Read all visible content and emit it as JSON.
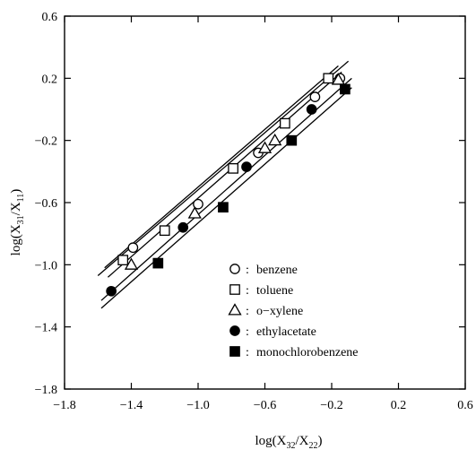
{
  "chart_data": {
    "type": "scatter",
    "x_axis": {
      "label_main": "log(X",
      "label_sub1": "32",
      "label_mid": "/X",
      "label_sub2": "22",
      "label_end": ")",
      "range": [
        -1.8,
        0.6
      ],
      "ticks": [
        -1.8,
        -1.4,
        -1.0,
        -0.6,
        -0.2,
        0.2,
        0.6
      ],
      "tick_labels": [
        "−1.8",
        "−1.4",
        "−1.0",
        "−0.6",
        "−0.2",
        "0.2",
        "0.6"
      ]
    },
    "y_axis": {
      "label_main": "log(X",
      "label_sub1": "31",
      "label_mid": "/X",
      "label_sub2": "11",
      "label_end": ")",
      "range": [
        -1.8,
        0.6
      ],
      "ticks": [
        -1.8,
        -1.4,
        -1.0,
        -0.6,
        -0.2,
        0.2,
        0.6
      ],
      "tick_labels": [
        "−1.8",
        "−1.4",
        "−1.0",
        "−0.6",
        "−0.2",
        "0.2",
        "0.6"
      ]
    },
    "grid": false,
    "legend_position": "bottom-right",
    "series": [
      {
        "name": "benzene",
        "legend_label": "○ : benzene",
        "marker": "circle-open",
        "points": [
          [
            -1.39,
            -0.89
          ],
          [
            -1.0,
            -0.61
          ],
          [
            -0.64,
            -0.28
          ],
          [
            -0.3,
            0.08
          ],
          [
            -0.15,
            0.2
          ]
        ],
        "fit_line": [
          [
            -1.6,
            -1.07
          ],
          [
            -0.1,
            0.31
          ]
        ]
      },
      {
        "name": "toluene",
        "legend_label": "□ : toluene",
        "marker": "square-open",
        "points": [
          [
            -1.45,
            -0.97
          ],
          [
            -1.2,
            -0.78
          ],
          [
            -0.79,
            -0.38
          ],
          [
            -0.48,
            -0.09
          ],
          [
            -0.22,
            0.2
          ]
        ],
        "fit_line": [
          [
            -1.56,
            -1.02
          ],
          [
            -0.16,
            0.28
          ]
        ]
      },
      {
        "name": "o-xylene",
        "legend_label": "△ : o-xylene",
        "marker": "triangle-open",
        "points": [
          [
            -1.4,
            -1.0
          ],
          [
            -1.02,
            -0.67
          ],
          [
            -0.6,
            -0.25
          ],
          [
            -0.54,
            -0.2
          ],
          [
            -0.16,
            0.19
          ]
        ],
        "fit_line": [
          [
            -1.54,
            -1.08
          ],
          [
            -0.14,
            0.24
          ]
        ]
      },
      {
        "name": "ethylacetate",
        "legend_label": "● : ethylacetate",
        "marker": "circle-filled",
        "points": [
          [
            -1.52,
            -1.17
          ],
          [
            -1.09,
            -0.76
          ],
          [
            -0.71,
            -0.37
          ],
          [
            -0.32,
            0.0
          ]
        ],
        "fit_line": [
          [
            -1.58,
            -1.23
          ],
          [
            -0.08,
            0.2
          ]
        ]
      },
      {
        "name": "monochlorobenzene",
        "legend_label": "■ : monochlorobenzene",
        "marker": "square-filled",
        "points": [
          [
            -1.24,
            -0.99
          ],
          [
            -0.85,
            -0.63
          ],
          [
            -0.44,
            -0.2
          ],
          [
            -0.12,
            0.13
          ]
        ],
        "fit_line": [
          [
            -1.58,
            -1.28
          ],
          [
            -0.08,
            0.14
          ]
        ]
      }
    ],
    "legend_entries": [
      {
        "marker": "circle-open",
        "text": "benzene"
      },
      {
        "marker": "square-open",
        "text": "toluene"
      },
      {
        "marker": "triangle-open",
        "text": "o−xylene"
      },
      {
        "marker": "circle-filled",
        "text": "ethylacetate"
      },
      {
        "marker": "square-filled",
        "text": "monochlorobenzene"
      }
    ],
    "legend_separator": ":"
  }
}
